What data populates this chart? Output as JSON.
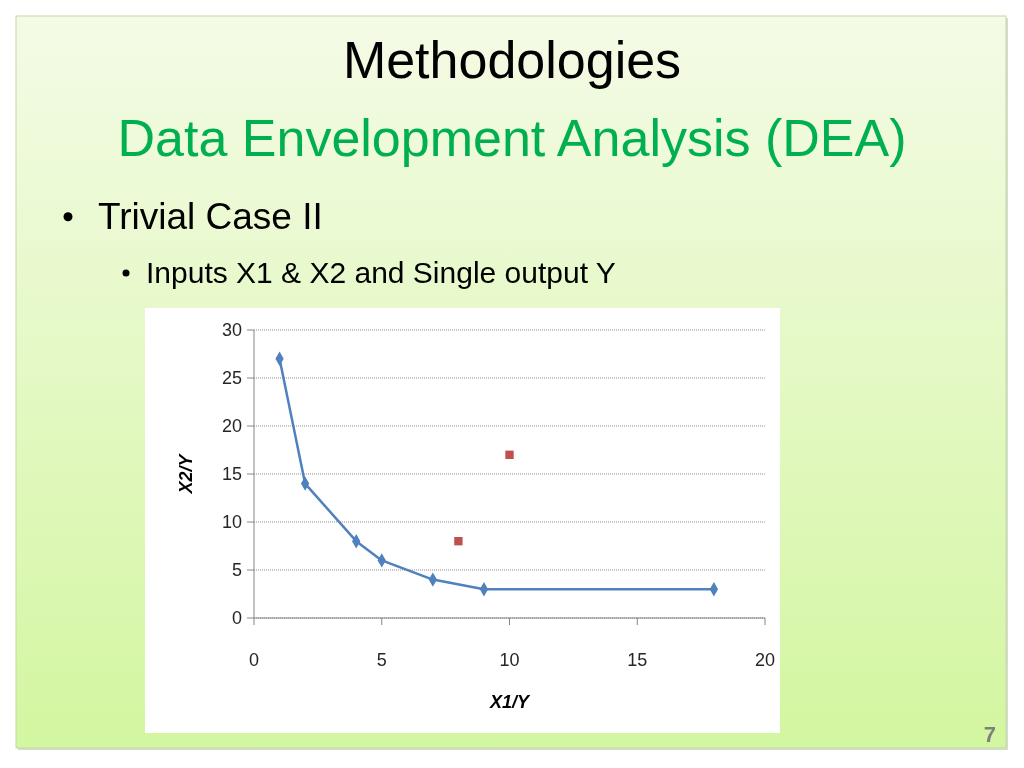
{
  "chart_data": {
    "type": "line",
    "title": "Methodologies",
    "subtitle": "Data Envelopment Analysis (DEA)",
    "annotations": [
      "Trivial Case II",
      "Inputs X1 & X2 and Single output Y",
      "7"
    ],
    "xlabel": "X1/Y",
    "ylabel": "X2/Y",
    "xlim": [
      0,
      20
    ],
    "xticks": [
      0,
      5,
      10,
      15,
      20
    ],
    "ylim": [
      0,
      30
    ],
    "yticks": [
      0,
      5,
      10,
      15,
      20,
      25,
      30
    ],
    "grid": "y",
    "series": [
      {
        "color": "#4f81bd",
        "marker": "diamond",
        "x": [
          1,
          2,
          4,
          5,
          7,
          9,
          18
        ],
        "values": [
          27,
          14,
          8,
          6,
          4,
          3,
          3
        ]
      },
      {
        "type": "scatter",
        "color": "#c0504d",
        "marker": "square",
        "x": [
          8,
          10
        ],
        "values": [
          8,
          17
        ]
      }
    ]
  }
}
